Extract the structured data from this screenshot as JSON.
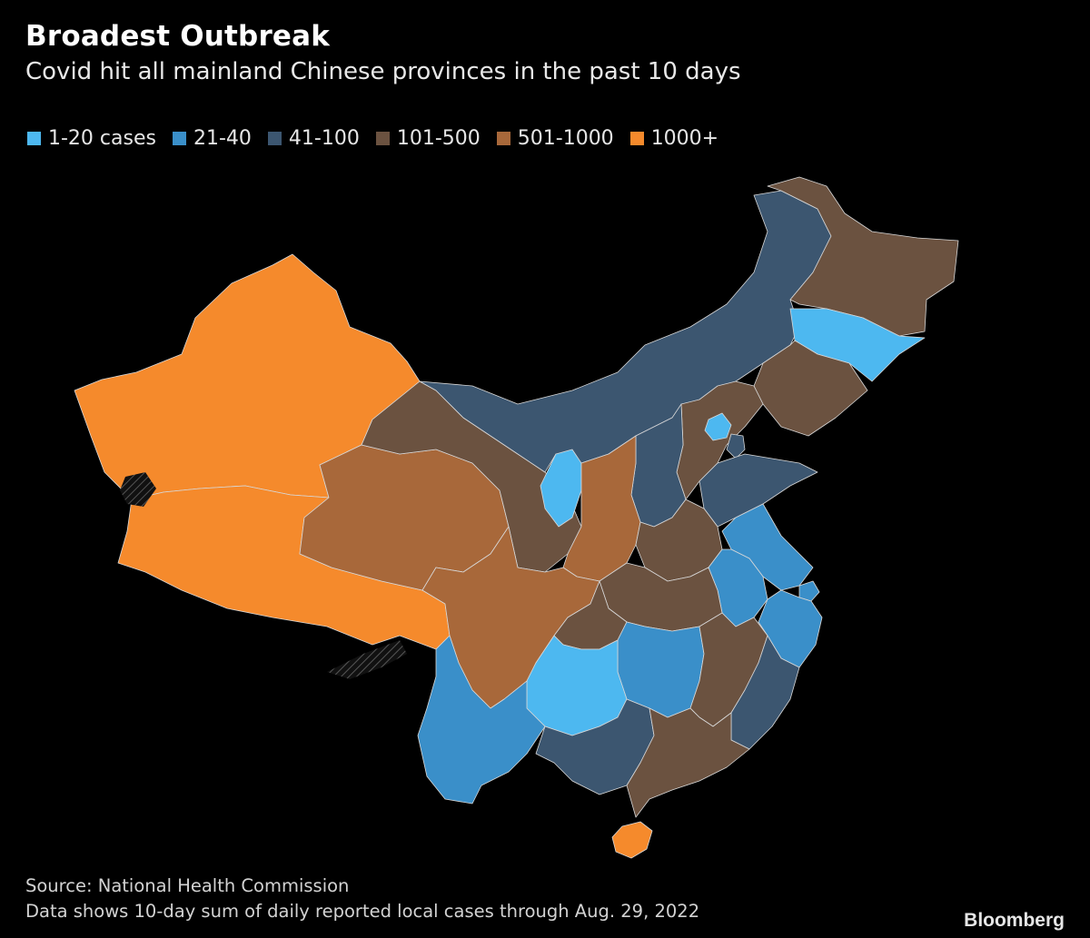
{
  "header": {
    "title": "Broadest Outbreak",
    "subtitle": "Covid hit all mainland Chinese provinces in the past 10 days"
  },
  "legend": [
    {
      "label": "1-20 cases",
      "color": "#4db8f0"
    },
    {
      "label": "21-40",
      "color": "#3a8fc9"
    },
    {
      "label": "41-100",
      "color": "#3c5670"
    },
    {
      "label": "101-500",
      "color": "#6b5240"
    },
    {
      "label": "501-1000",
      "color": "#a8683a"
    },
    {
      "label": "1000+",
      "color": "#f58a2c"
    }
  ],
  "footer": {
    "source": "Source: National Health Commission",
    "note": "Data shows 10-day sum of daily reported local cases through Aug. 29, 2022",
    "brand": "Bloomberg"
  },
  "map": {
    "regions": [
      {
        "id": "xinjiang",
        "bin": 5
      },
      {
        "id": "tibet",
        "bin": 5
      },
      {
        "id": "qinghai",
        "bin": 4
      },
      {
        "id": "gansu",
        "bin": 3
      },
      {
        "id": "inner-mongolia",
        "bin": 2
      },
      {
        "id": "heilongjiang",
        "bin": 3
      },
      {
        "id": "jilin",
        "bin": 0
      },
      {
        "id": "liaoning",
        "bin": 3
      },
      {
        "id": "hebei",
        "bin": 3
      },
      {
        "id": "beijing",
        "bin": 0
      },
      {
        "id": "tianjin",
        "bin": 2
      },
      {
        "id": "shanxi",
        "bin": 2
      },
      {
        "id": "ningxia",
        "bin": 0
      },
      {
        "id": "shaanxi",
        "bin": 4
      },
      {
        "id": "shandong",
        "bin": 2
      },
      {
        "id": "henan",
        "bin": 3
      },
      {
        "id": "jiangsu",
        "bin": 1
      },
      {
        "id": "anhui",
        "bin": 1
      },
      {
        "id": "shanghai",
        "bin": 1
      },
      {
        "id": "zhejiang",
        "bin": 1
      },
      {
        "id": "hubei",
        "bin": 3
      },
      {
        "id": "sichuan",
        "bin": 4
      },
      {
        "id": "chongqing",
        "bin": 3
      },
      {
        "id": "hunan",
        "bin": 1
      },
      {
        "id": "jiangxi",
        "bin": 3
      },
      {
        "id": "fujian",
        "bin": 2
      },
      {
        "id": "guizhou",
        "bin": 0
      },
      {
        "id": "yunnan",
        "bin": 1
      },
      {
        "id": "guangxi",
        "bin": 2
      },
      {
        "id": "guangdong",
        "bin": 3
      },
      {
        "id": "hainan",
        "bin": 5
      }
    ]
  }
}
